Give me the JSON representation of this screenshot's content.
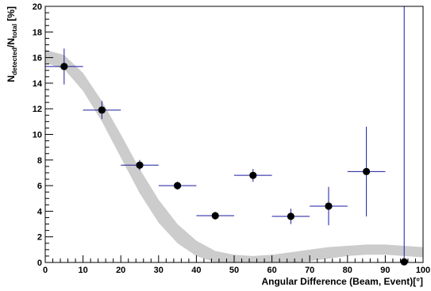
{
  "chart_data": {
    "type": "scatter",
    "xlabel": "Angular Difference (Beam, Event)[°]",
    "ylabel": {
      "base1": "N",
      "sub1": "detected",
      "mid": "/N",
      "sub2": "total",
      "end": " [%]"
    },
    "xlim": [
      0,
      100
    ],
    "ylim": [
      0,
      20
    ],
    "x_ticks": [
      0,
      10,
      20,
      30,
      40,
      50,
      60,
      70,
      80,
      90,
      100
    ],
    "y_ticks": [
      0,
      2,
      4,
      6,
      8,
      10,
      12,
      14,
      16,
      18,
      20
    ],
    "grid": false,
    "colors": {
      "points": "#000000",
      "error_bars": "#1a1aa0",
      "band": "#cccccc",
      "axes": "#000000"
    },
    "points": [
      {
        "x": 5,
        "y": 15.3,
        "xerr": 5,
        "yerr_low": 1.4,
        "yerr_high": 1.4
      },
      {
        "x": 15,
        "y": 11.9,
        "xerr": 5,
        "yerr_low": 0.7,
        "yerr_high": 0.7
      },
      {
        "x": 25,
        "y": 7.6,
        "xerr": 5,
        "yerr_low": 0.4,
        "yerr_high": 0.4
      },
      {
        "x": 35,
        "y": 6.0,
        "xerr": 5,
        "yerr_low": 0.3,
        "yerr_high": 0.3
      },
      {
        "x": 45,
        "y": 3.65,
        "xerr": 5,
        "yerr_low": 0.3,
        "yerr_high": 0.3
      },
      {
        "x": 55,
        "y": 6.8,
        "xerr": 5,
        "yerr_low": 0.5,
        "yerr_high": 0.5
      },
      {
        "x": 65,
        "y": 3.6,
        "xerr": 5,
        "yerr_low": 0.6,
        "yerr_high": 0.6
      },
      {
        "x": 75,
        "y": 4.4,
        "xerr": 5,
        "yerr_low": 1.5,
        "yerr_high": 1.5
      },
      {
        "x": 85,
        "y": 7.1,
        "xerr": 5,
        "yerr_low": 3.5,
        "yerr_high": 3.5
      },
      {
        "x": 95,
        "y": 0.05,
        "xerr": 0,
        "yerr_low": 0.05,
        "yerr_high": 20
      }
    ],
    "band": {
      "x": [
        0,
        5,
        10,
        15,
        20,
        25,
        30,
        35,
        40,
        45,
        50,
        55,
        60,
        65,
        70,
        75,
        80,
        85,
        90,
        95,
        100
      ],
      "lower": [
        15.6,
        15.1,
        13.4,
        11.0,
        8.2,
        5.4,
        3.1,
        1.5,
        0.5,
        0.0,
        0.0,
        0.0,
        0.0,
        0.0,
        0.1,
        0.3,
        0.5,
        0.6,
        0.6,
        0.5,
        0.4
      ],
      "upper": [
        16.6,
        16.2,
        14.8,
        12.6,
        10.0,
        7.3,
        4.9,
        3.0,
        1.7,
        0.9,
        0.6,
        0.5,
        0.6,
        0.8,
        1.0,
        1.2,
        1.3,
        1.4,
        1.4,
        1.3,
        1.2
      ]
    }
  }
}
